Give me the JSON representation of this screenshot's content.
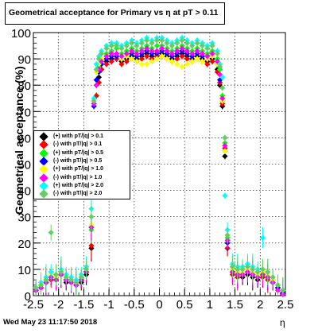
{
  "chart_data": {
    "type": "scatter",
    "title": "Geometrical acceptance for Primary vs   η at pT > 0.11",
    "xlabel": "η",
    "ylabel": "Geometrical acceptance (%)",
    "xlim": [
      -2.5,
      2.5
    ],
    "ylim": [
      0,
      100
    ],
    "x_ticks": [
      -2.5,
      -2,
      -1.5,
      -1,
      -0.5,
      0,
      0.5,
      1,
      1.5,
      2,
      2.5
    ],
    "x_tick_labels": [
      "-2.5",
      "-2",
      "-1.5",
      "-1",
      "-0.5",
      "0",
      "0.5",
      "1",
      "1.5",
      "2",
      "2.5"
    ],
    "y_ticks": [
      0,
      10,
      20,
      30,
      40,
      50,
      60,
      70,
      80,
      90,
      100
    ],
    "y_tick_labels": [
      "0",
      "10",
      "20",
      "30",
      "40",
      "50",
      "60",
      "70",
      "80",
      "90",
      "100"
    ],
    "grid": true,
    "legend_position": "middle-left",
    "eta_bins": [
      -2.45,
      -2.35,
      -2.25,
      -2.15,
      -2.05,
      -1.95,
      -1.85,
      -1.75,
      -1.65,
      -1.55,
      -1.45,
      -1.35,
      -1.3,
      -1.25,
      -1.2,
      -1.15,
      -1.05,
      -0.95,
      -0.85,
      -0.75,
      -0.65,
      -0.55,
      -0.45,
      -0.35,
      -0.25,
      -0.15,
      -0.05,
      0.05,
      0.15,
      0.25,
      0.35,
      0.45,
      0.55,
      0.65,
      0.75,
      0.85,
      0.95,
      1.05,
      1.15,
      1.2,
      1.25,
      1.3,
      1.35,
      1.45,
      1.55,
      1.65,
      1.75,
      1.85,
      1.95,
      2.05,
      2.15,
      2.25,
      2.35,
      2.45
    ],
    "series": [
      {
        "name": "(+) with pT/|q| > 0.1",
        "color": "#000000",
        "values": [
          2,
          3,
          5,
          7,
          6,
          8,
          5,
          6,
          4,
          5,
          8,
          18,
          54,
          76,
          83,
          86,
          89,
          90,
          90,
          89,
          90,
          91,
          90,
          91,
          92,
          91,
          91,
          92,
          91,
          90,
          91,
          92,
          91,
          90,
          91,
          90,
          89,
          90,
          86,
          80,
          72,
          53,
          18,
          9,
          8,
          7,
          8,
          7,
          6,
          8,
          7,
          5,
          3,
          1
        ]
      },
      {
        "name": "(-) with pT/|q| > 0.1",
        "color": "#ff0000",
        "values": [
          2,
          3,
          5,
          6,
          7,
          8,
          6,
          5,
          4,
          6,
          9,
          19,
          55,
          76,
          81,
          86,
          88,
          89,
          90,
          88,
          89,
          90,
          89,
          90,
          91,
          90,
          91,
          91,
          90,
          89,
          90,
          91,
          90,
          89,
          90,
          89,
          88,
          89,
          85,
          81,
          73,
          56,
          18,
          8,
          7,
          8,
          9,
          8,
          7,
          7,
          6,
          5,
          3,
          1
        ]
      },
      {
        "name": "(+) with pT/|q| > 0.5",
        "color": "#00ff00",
        "values": [
          3,
          4,
          6,
          8,
          7,
          9,
          7,
          6,
          5,
          7,
          9,
          25,
          62,
          80,
          87,
          90,
          92,
          93,
          94,
          92,
          93,
          94,
          93,
          94,
          95,
          94,
          95,
          95,
          94,
          93,
          94,
          95,
          94,
          93,
          94,
          93,
          92,
          93,
          90,
          86,
          76,
          58,
          22,
          10,
          9,
          9,
          10,
          9,
          8,
          9,
          8,
          6,
          4,
          2
        ]
      },
      {
        "name": "(-) with pT/|q| > 0.5",
        "color": "#0000ff",
        "values": [
          2,
          3,
          5,
          7,
          6,
          8,
          6,
          5,
          4,
          6,
          9,
          26,
          72,
          82,
          85,
          88,
          90,
          91,
          91,
          90,
          91,
          92,
          91,
          92,
          93,
          92,
          92,
          93,
          92,
          91,
          92,
          93,
          92,
          91,
          92,
          91,
          90,
          91,
          88,
          82,
          74,
          55,
          20,
          9,
          8,
          8,
          9,
          8,
          7,
          8,
          7,
          5,
          3,
          1
        ]
      },
      {
        "name": "(+) with pT/|q| > 1.0",
        "color": "#ffff00",
        "values": [
          3,
          4,
          6,
          8,
          7,
          9,
          7,
          6,
          5,
          7,
          10,
          27,
          73,
          85,
          88,
          90,
          91,
          92,
          92,
          90,
          91,
          90,
          89,
          88,
          88,
          89,
          90,
          91,
          90,
          89,
          88,
          87,
          88,
          89,
          90,
          89,
          90,
          91,
          88,
          84,
          74,
          55,
          21,
          10,
          9,
          9,
          10,
          9,
          8,
          9,
          8,
          6,
          4,
          2
        ]
      },
      {
        "name": "(-) with pT/|q| > 1.0",
        "color": "#ff00ff",
        "values": [
          2,
          3,
          5,
          7,
          6,
          8,
          6,
          5,
          4,
          6,
          9,
          26,
          73,
          80,
          86,
          89,
          91,
          92,
          92,
          91,
          92,
          93,
          92,
          93,
          94,
          93,
          93,
          94,
          93,
          92,
          93,
          94,
          93,
          92,
          93,
          92,
          91,
          92,
          89,
          84,
          75,
          57,
          21,
          9,
          8,
          8,
          9,
          8,
          7,
          8,
          7,
          5,
          2,
          0.5
        ]
      },
      {
        "name": "(+) with pT/|q| > 2.0",
        "color": "#00ffff",
        "values": [
          3,
          5,
          7,
          9,
          8,
          10,
          8,
          7,
          6,
          8,
          11,
          33,
          75,
          88,
          91,
          93,
          95,
          96,
          96,
          95,
          96,
          97,
          96,
          97,
          98,
          97,
          98,
          98,
          97,
          96,
          97,
          98,
          97,
          96,
          97,
          96,
          95,
          96,
          93,
          88,
          83,
          38,
          25,
          12,
          11,
          11,
          12,
          11,
          10,
          22,
          9,
          7,
          4,
          2
        ]
      },
      {
        "name": "(-) with pT/|q| > 2.0",
        "color": "#66cc66",
        "values": [
          3,
          4,
          6,
          24,
          8,
          9,
          7,
          6,
          5,
          7,
          10,
          30,
          74,
          86,
          90,
          92,
          94,
          95,
          95,
          94,
          95,
          96,
          95,
          96,
          97,
          96,
          97,
          97,
          96,
          95,
          96,
          97,
          96,
          95,
          96,
          95,
          94,
          95,
          92,
          87,
          79,
          60,
          23,
          11,
          10,
          10,
          11,
          10,
          9,
          10,
          9,
          7,
          4,
          2
        ]
      }
    ]
  },
  "footer": {
    "date": "Wed May 23 11:17:50 2018"
  }
}
